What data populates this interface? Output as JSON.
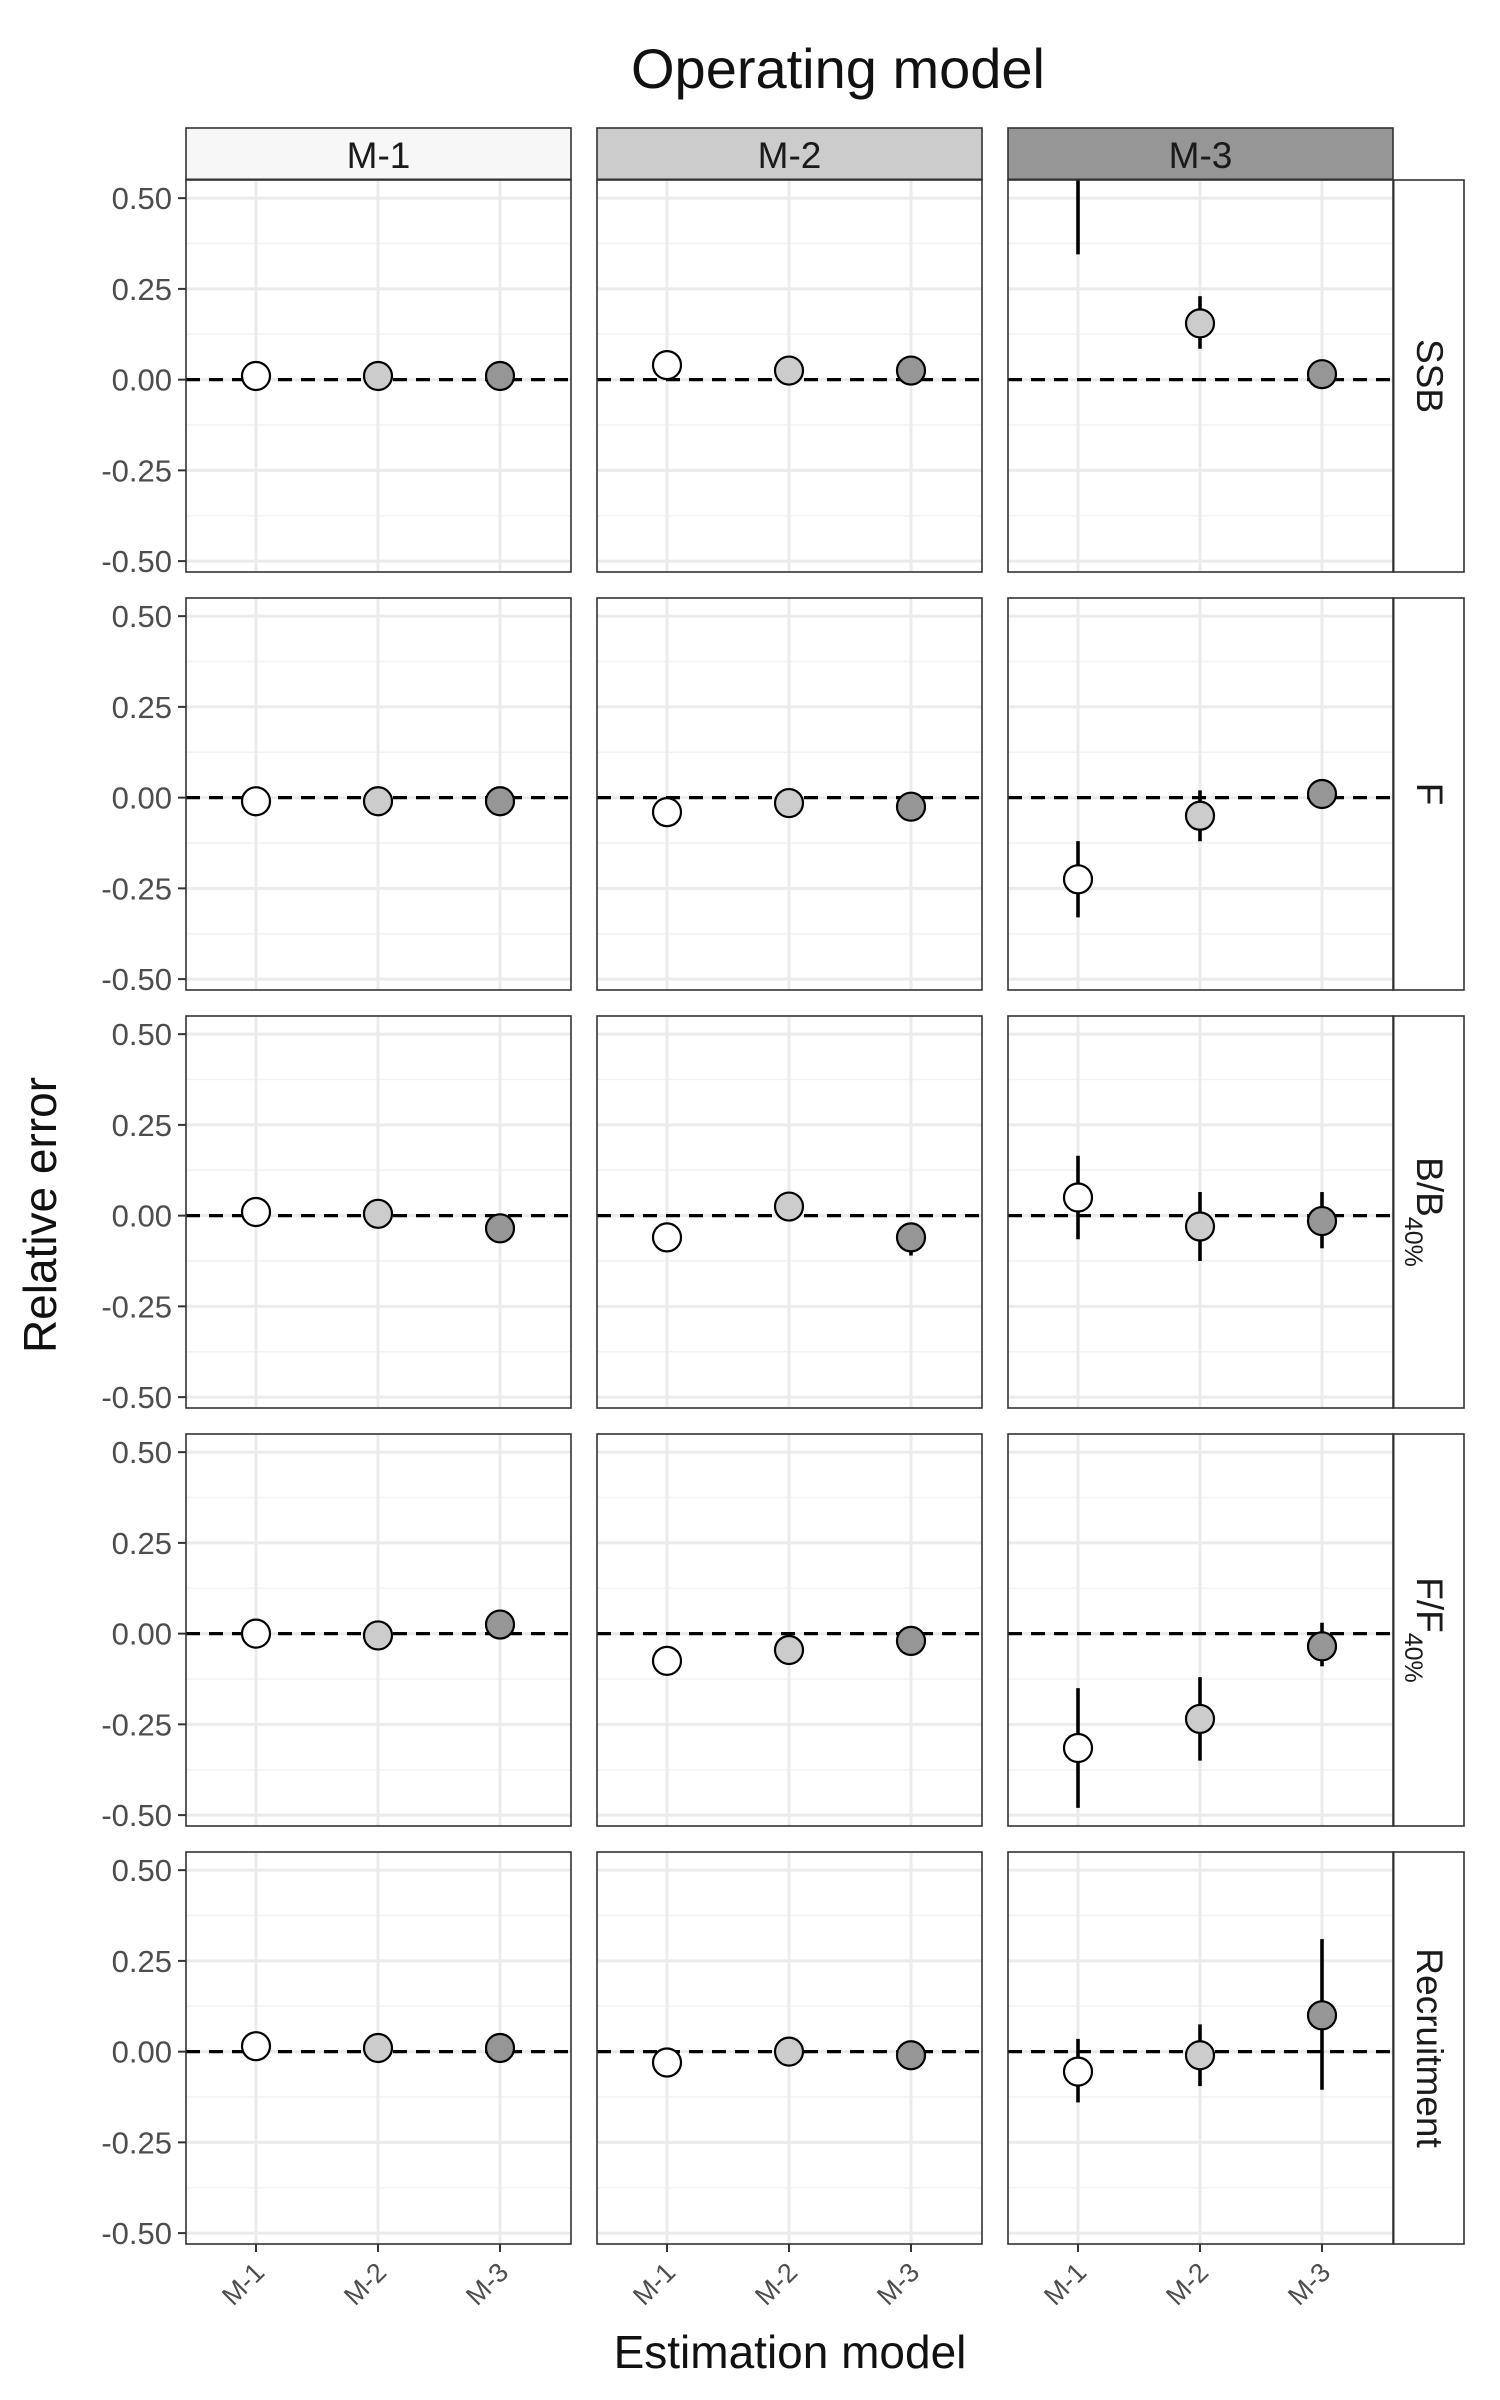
{
  "chart_data": {
    "type": "scatter",
    "title": "Operating model",
    "xlabel": "Estimation model",
    "ylabel": "Relative error",
    "ylim": [
      -0.53,
      0.55
    ],
    "grid": true,
    "legend": "none",
    "reference_line": 0,
    "yticks": [
      "0.50",
      "0.25",
      "0.00",
      "-0.25",
      "-0.50"
    ],
    "ytick_values": [
      0.5,
      0.25,
      0,
      -0.25,
      -0.5
    ],
    "column_facets": [
      "M-1",
      "M-2",
      "M-3"
    ],
    "column_facet_colors": [
      "#f7f7f7",
      "#cccccc",
      "#969696"
    ],
    "row_facets": [
      {
        "main": "SSB",
        "sub": ""
      },
      {
        "main": "F",
        "sub": ""
      },
      {
        "main": "B/B",
        "sub": "40%"
      },
      {
        "main": "F/F",
        "sub": "40%"
      },
      {
        "main": "Recruitment",
        "sub": ""
      }
    ],
    "categories": [
      "M-1",
      "M-2",
      "M-3"
    ],
    "point_colors": [
      "#ffffff",
      "#cccccc",
      "#969696"
    ],
    "panels": [
      [
        {
          "values": [
            0.01,
            0.01,
            0.01
          ],
          "lower": [
            0.01,
            0.01,
            0.01
          ],
          "upper": [
            0.01,
            0.01,
            0.01
          ]
        },
        {
          "values": [
            0.04,
            0.025,
            0.025
          ],
          "lower": [
            0.04,
            0.025,
            0.025
          ],
          "upper": [
            0.04,
            0.025,
            0.025
          ]
        },
        {
          "values": [
            null,
            0.155,
            0.015
          ],
          "lower": [
            0.345,
            0.085,
            0.015
          ],
          "upper": [
            0.55,
            0.23,
            0.015
          ]
        }
      ],
      [
        {
          "values": [
            -0.01,
            -0.01,
            -0.01
          ],
          "lower": [
            -0.01,
            -0.01,
            -0.01
          ],
          "upper": [
            -0.01,
            -0.01,
            -0.01
          ]
        },
        {
          "values": [
            -0.04,
            -0.015,
            -0.025
          ],
          "lower": [
            -0.04,
            -0.015,
            -0.025
          ],
          "upper": [
            -0.04,
            -0.015,
            -0.025
          ]
        },
        {
          "values": [
            -0.225,
            -0.05,
            0.01
          ],
          "lower": [
            -0.33,
            -0.12,
            0.01
          ],
          "upper": [
            -0.12,
            0.02,
            0.01
          ]
        }
      ],
      [
        {
          "values": [
            0.01,
            0.005,
            -0.035
          ],
          "lower": [
            0.01,
            0.005,
            -0.035
          ],
          "upper": [
            0.01,
            0.005,
            -0.035
          ]
        },
        {
          "values": [
            -0.06,
            0.025,
            -0.06
          ],
          "lower": [
            -0.06,
            0.025,
            -0.11
          ],
          "upper": [
            -0.06,
            0.025,
            -0.06
          ]
        },
        {
          "values": [
            0.05,
            -0.03,
            -0.015
          ],
          "lower": [
            -0.065,
            -0.125,
            -0.09
          ],
          "upper": [
            0.165,
            0.065,
            0.065
          ]
        }
      ],
      [
        {
          "values": [
            0.0,
            -0.005,
            0.025
          ],
          "lower": [
            0.0,
            -0.005,
            0.025
          ],
          "upper": [
            0.0,
            -0.005,
            0.025
          ]
        },
        {
          "values": [
            -0.075,
            -0.045,
            -0.02
          ],
          "lower": [
            -0.075,
            -0.045,
            -0.02
          ],
          "upper": [
            -0.075,
            -0.045,
            -0.02
          ]
        },
        {
          "values": [
            -0.315,
            -0.235,
            -0.035
          ],
          "lower": [
            -0.48,
            -0.35,
            -0.09
          ],
          "upper": [
            -0.15,
            -0.12,
            0.03
          ]
        }
      ],
      [
        {
          "values": [
            0.015,
            0.01,
            0.01
          ],
          "lower": [
            0.015,
            0.01,
            0.01
          ],
          "upper": [
            0.015,
            0.01,
            0.01
          ]
        },
        {
          "values": [
            -0.03,
            0.0,
            -0.01
          ],
          "lower": [
            -0.03,
            0.0,
            -0.01
          ],
          "upper": [
            -0.03,
            0.0,
            -0.01
          ]
        },
        {
          "values": [
            -0.055,
            -0.01,
            0.1
          ],
          "lower": [
            -0.14,
            -0.095,
            -0.105
          ],
          "upper": [
            0.035,
            0.075,
            0.31
          ]
        }
      ]
    ]
  }
}
